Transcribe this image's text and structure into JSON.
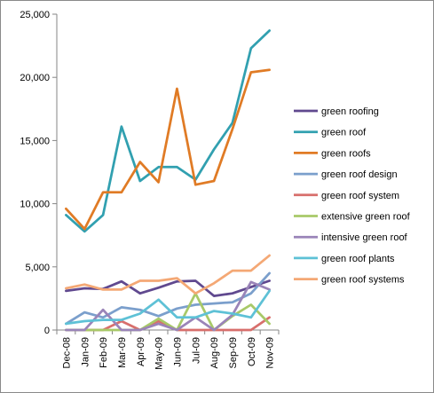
{
  "chart_data": {
    "type": "line",
    "title": "",
    "xlabel": "",
    "ylabel": "",
    "ylim": [
      0,
      25000
    ],
    "y_ticks": [
      "0",
      "5,000",
      "10,000",
      "15,000",
      "20,000",
      "25,000"
    ],
    "y_tick_values": [
      0,
      5000,
      10000,
      15000,
      20000,
      25000
    ],
    "grid": false,
    "legend_position": "right",
    "categories": [
      "Dec-08",
      "Jan-09",
      "Feb-09",
      "Mar-09",
      "Apr-09",
      "May-09",
      "Jun-09",
      "Jul-09",
      "Aug-09",
      "Sep-09",
      "Oct-09",
      "Nov-09"
    ],
    "series": [
      {
        "name": "green roofing",
        "color": "#60498f",
        "values": [
          3100,
          3300,
          3250,
          3850,
          2900,
          3350,
          3850,
          3900,
          2700,
          2900,
          3400,
          3900
        ]
      },
      {
        "name": "green roof",
        "color": "#31a0b0",
        "values": [
          9100,
          7800,
          9100,
          16100,
          11800,
          12900,
          12900,
          11900,
          14300,
          16400,
          22300,
          23700
        ]
      },
      {
        "name": "green roofs",
        "color": "#e07b25",
        "values": [
          9600,
          8000,
          10900,
          10900,
          13300,
          11700,
          19100,
          11500,
          11800,
          15900,
          20400,
          20600
        ]
      },
      {
        "name": "green roof design",
        "color": "#7b9fcc",
        "values": [
          500,
          1400,
          1000,
          1800,
          1600,
          1100,
          1700,
          2000,
          2100,
          2200,
          2900,
          4500
        ]
      },
      {
        "name": "green roof system",
        "color": "#d86f6c",
        "values": [
          0,
          0,
          0,
          700,
          0,
          700,
          0,
          0,
          0,
          0,
          0,
          1000
        ]
      },
      {
        "name": "extensive green roof",
        "color": "#a8c968",
        "values": [
          0,
          0,
          0,
          0,
          0,
          900,
          0,
          2900,
          0,
          1100,
          2000,
          500
        ]
      },
      {
        "name": "intensive green roof",
        "color": "#9a84b8",
        "values": [
          0,
          0,
          1600,
          0,
          0,
          500,
          0,
          1000,
          0,
          1200,
          3800,
          3200
        ]
      },
      {
        "name": "green roof plants",
        "color": "#5ec1d6",
        "values": [
          500,
          700,
          800,
          800,
          1300,
          2400,
          1000,
          1000,
          1500,
          1300,
          1000,
          3100
        ]
      },
      {
        "name": "green roof systems",
        "color": "#f4a875",
        "values": [
          3300,
          3600,
          3200,
          3200,
          3900,
          3900,
          4100,
          2900,
          3700,
          4700,
          4700,
          5900
        ]
      }
    ]
  }
}
